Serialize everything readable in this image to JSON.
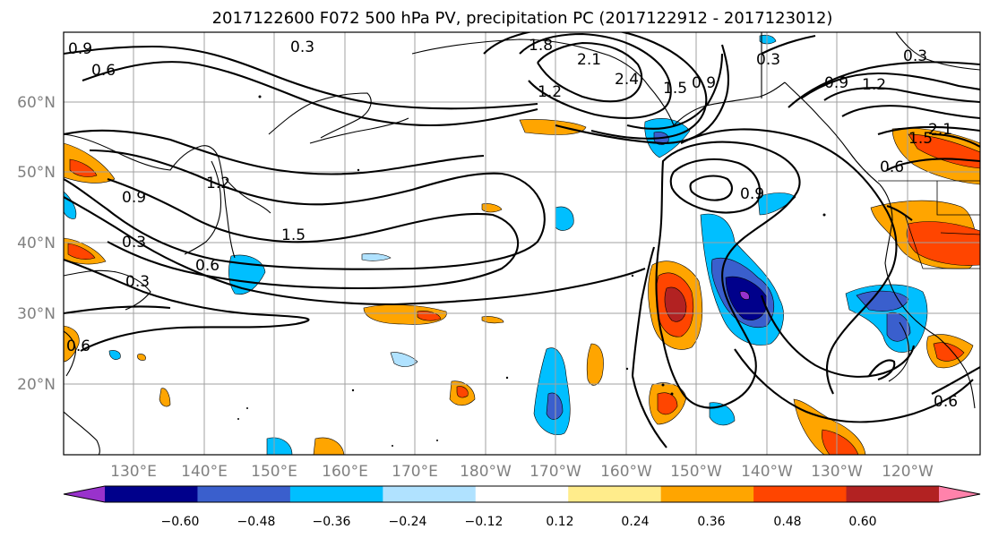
{
  "title": "2017122600 F072 500 hPa PV, precipitation PC (2017122912 - 2017123012)",
  "lat_labels": [
    "60°N",
    "50°N",
    "40°N",
    "30°N",
    "20°N"
  ],
  "lon_labels": [
    "130°E",
    "140°E",
    "150°E",
    "160°E",
    "170°E",
    "180°W",
    "170°W",
    "160°W",
    "150°W",
    "140°W",
    "130°W",
    "120°W"
  ],
  "colorbar": {
    "colors": [
      "#9932cc",
      "#00008b",
      "#3a5fcd",
      "#00bfff",
      "#b0e2ff",
      "#ffffff",
      "#ffec8b",
      "#ffa500",
      "#ff4500",
      "#b22222",
      "#ff82ab"
    ],
    "labels": [
      "−0.60",
      "−0.48",
      "−0.36",
      "−0.24",
      "−0.12",
      "0.12",
      "0.24",
      "0.36",
      "0.48",
      "0.60"
    ]
  },
  "contour_labels": [
    "0.3",
    "0.6",
    "0.9",
    "1.2",
    "1.5",
    "1.8",
    "2.1",
    "2.4",
    "0.3",
    "0.9",
    "1.2",
    "1.5",
    "0.9",
    "0.6",
    "0.3",
    "0.9",
    "0.6",
    "0.3",
    "0.6",
    "0.3",
    "0.9",
    "1.2",
    "2.1",
    "1.5",
    "0.6"
  ]
}
